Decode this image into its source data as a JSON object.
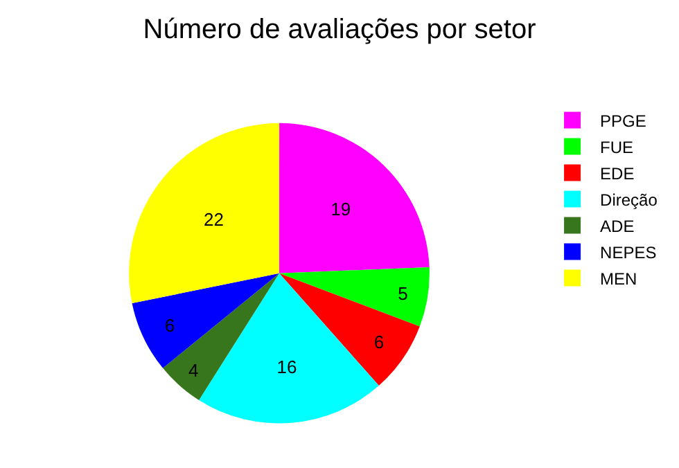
{
  "chart_data": {
    "type": "pie",
    "title": "Número de avaliações por setor",
    "categories": [
      "PPGE",
      "FUE",
      "EDE",
      "Direção",
      "ADE",
      "NEPES",
      "MEN"
    ],
    "values": [
      19,
      5,
      6,
      16,
      4,
      6,
      22
    ],
    "colors": [
      "#ff00ff",
      "#00ff00",
      "#ff0000",
      "#00ffff",
      "#38761d",
      "#0000ff",
      "#ffff00"
    ],
    "data_labels": true,
    "legend": "right"
  }
}
